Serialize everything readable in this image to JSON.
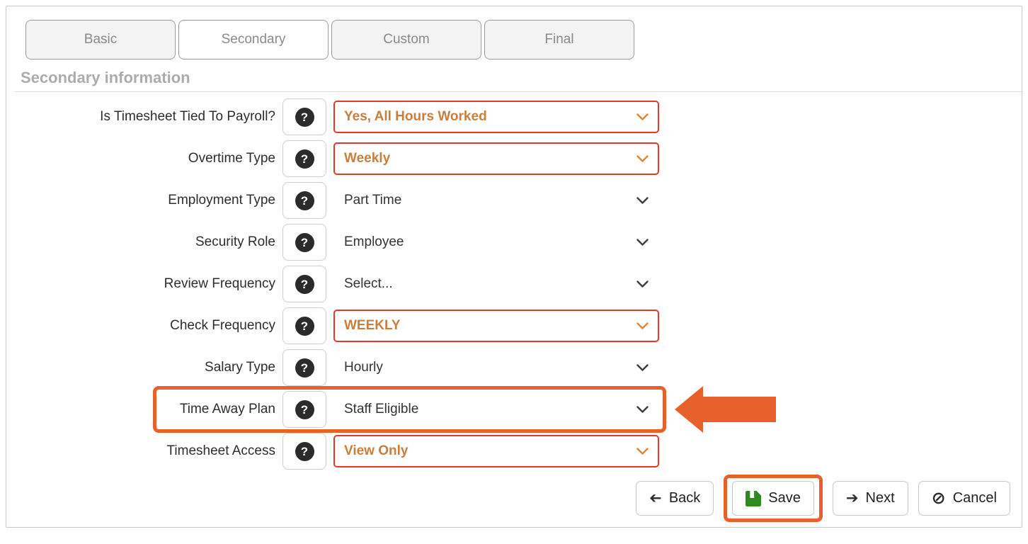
{
  "tabs": [
    {
      "label": "Basic",
      "active": false
    },
    {
      "label": "Secondary",
      "active": true
    },
    {
      "label": "Custom",
      "active": false
    },
    {
      "label": "Final",
      "active": false
    }
  ],
  "section": {
    "title": "Secondary information"
  },
  "form": {
    "rows": [
      {
        "label": "Is Timesheet Tied To Payroll?",
        "value": "Yes, All Hours Worked",
        "highlighted": true,
        "annotated": false
      },
      {
        "label": "Overtime Type",
        "value": "Weekly",
        "highlighted": true,
        "annotated": false
      },
      {
        "label": "Employment Type",
        "value": "Part Time",
        "highlighted": false,
        "annotated": false
      },
      {
        "label": "Security Role",
        "value": "Employee",
        "highlighted": false,
        "annotated": false
      },
      {
        "label": "Review Frequency",
        "value": "Select...",
        "highlighted": false,
        "annotated": false
      },
      {
        "label": "Check Frequency",
        "value": "WEEKLY",
        "highlighted": true,
        "annotated": false
      },
      {
        "label": "Salary Type",
        "value": "Hourly",
        "highlighted": false,
        "annotated": false
      },
      {
        "label": "Time Away Plan",
        "value": "Staff Eligible",
        "highlighted": false,
        "annotated": true
      },
      {
        "label": "Timesheet Access",
        "value": "View Only",
        "highlighted": true,
        "annotated": false
      }
    ]
  },
  "footer": {
    "back_label": "Back",
    "save_label": "Save",
    "next_label": "Next",
    "cancel_label": "Cancel"
  },
  "glyphs": {
    "question": "?",
    "arrow": "➔",
    "cancel": "⊘"
  },
  "icons": {
    "help": "question-circle-icon",
    "back": "arrow-left-icon",
    "save": "floppy-disk-icon",
    "next": "arrow-right-icon",
    "cancel": "ban-icon",
    "annotation_pointer": "arrow-left-callout-icon"
  },
  "colors": {
    "annotation_orange": "#e8612c",
    "alert_border_red": "#e2392d",
    "value_orange": "#c87e3e",
    "save_green": "#2f8b1f",
    "muted_heading_gray": "#acacac"
  }
}
